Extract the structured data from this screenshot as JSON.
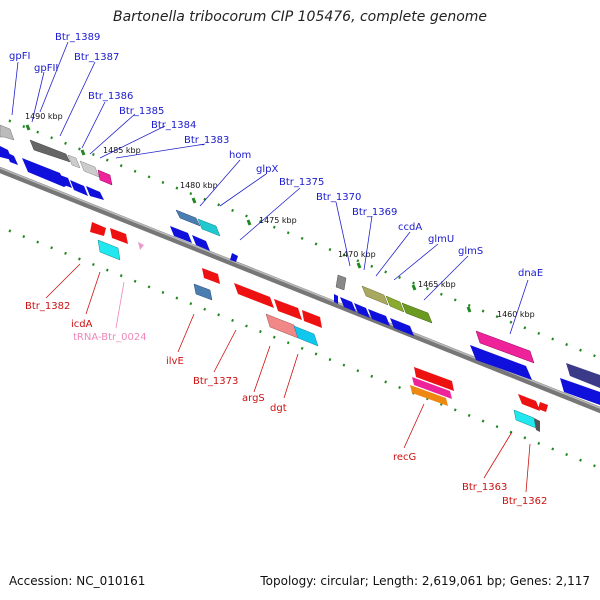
{
  "title": "Bartonella tribocorum CIP 105476, complete genome",
  "footer": {
    "accession": "Accession: NC_010161",
    "summary": "Topology: circular; Length: 2,619,061 bp; Genes: 2,117"
  },
  "colors": {
    "forward_label": "#1a1acc",
    "reverse_label": "#cc1111",
    "trna_label": "#ee88bb",
    "backbone": "#888888",
    "ticks": "#228822"
  },
  "ticks": [
    "1490 kbp",
    "1485 kbp",
    "1480 kbp",
    "1475 kbp",
    "1470 kbp",
    "1465 kbp",
    "1460 kbp"
  ],
  "forward_genes": [
    "gpFI",
    "gpFII",
    "Btr_1389",
    "Btr_1387",
    "Btr_1386",
    "Btr_1385",
    "Btr_1384",
    "Btr_1383",
    "hom",
    "glpX",
    "Btr_1375",
    "Btr_1370",
    "Btr_1369",
    "ccdA",
    "glmU",
    "glmS",
    "dnaE"
  ],
  "reverse_genes": [
    "Btr_1382",
    "icdA",
    "tRNA-Btr_0024",
    "ilvE",
    "Btr_1373",
    "argS",
    "dgt",
    "recG",
    "Btr_1363",
    "Btr_1362"
  ]
}
